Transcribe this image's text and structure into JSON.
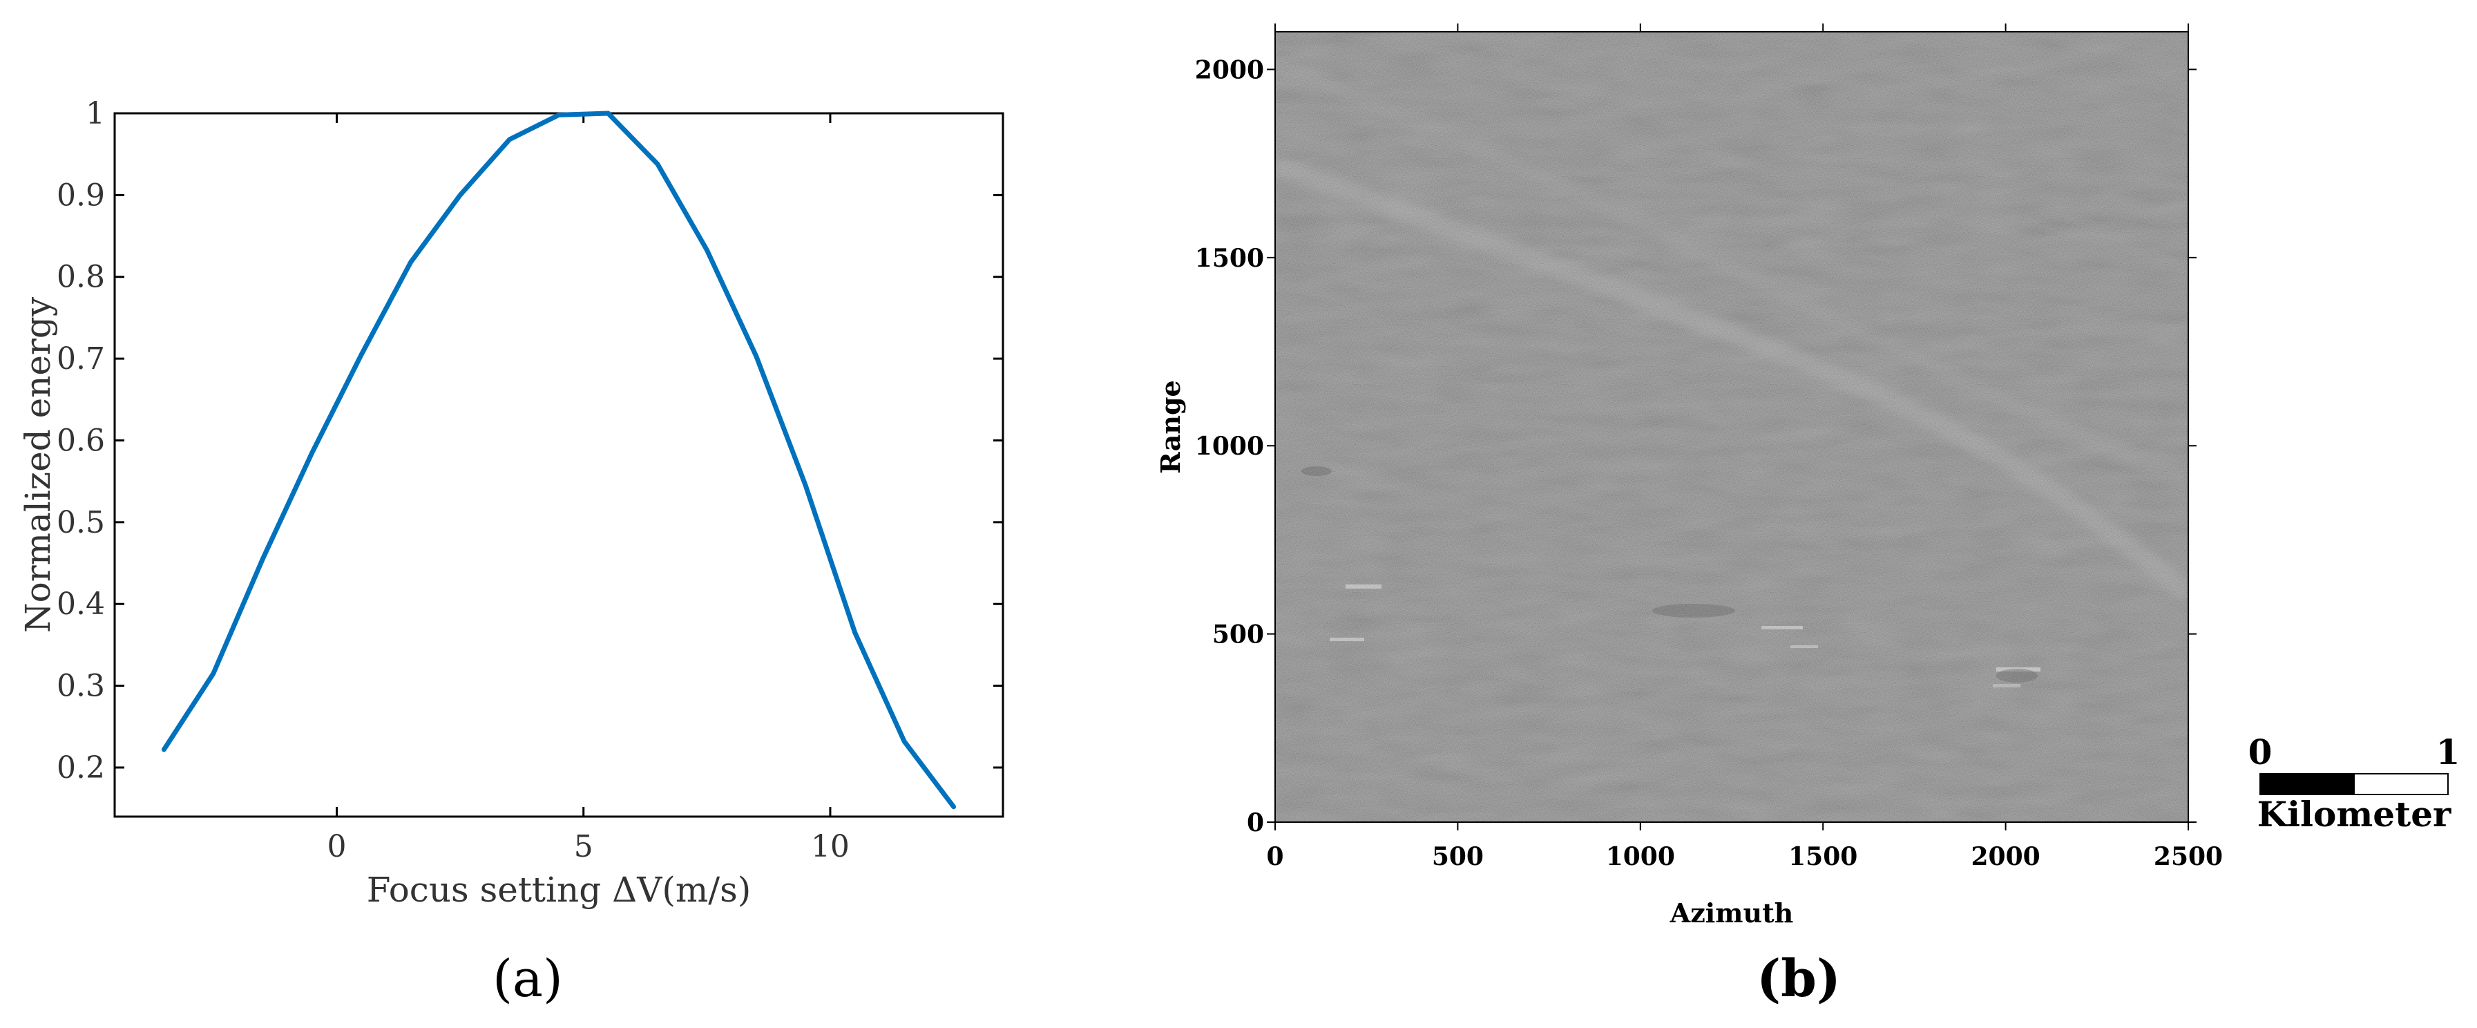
{
  "chart_data": [
    {
      "type": "line",
      "xlabel": "Focus setting ΔV(m/s)",
      "ylabel": "Normalized energy",
      "xlim": [
        -4.5,
        13.5
      ],
      "ylim": [
        0.14,
        1.0
      ],
      "xticks": [
        0,
        5,
        10
      ],
      "yticks": [
        0.2,
        0.3,
        0.4,
        0.5,
        0.6,
        0.7,
        0.8,
        0.9,
        1
      ],
      "ytick_labels": [
        "0.2",
        "0.3",
        "0.4",
        "0.5",
        "0.6",
        "0.7",
        "0.8",
        "0.9",
        "1"
      ],
      "series": [
        {
          "x": [
            -3.5,
            -2.5,
            -1.5,
            -0.5,
            0.5,
            1.5,
            2.5,
            3.5,
            4.5,
            5.5,
            6.5,
            7.5,
            8.5,
            9.5,
            10.5,
            11.5,
            12.5
          ],
          "y": [
            0.222,
            0.315,
            0.455,
            0.585,
            0.705,
            0.818,
            0.9,
            0.968,
            0.998,
            1.0,
            0.938,
            0.833,
            0.703,
            0.545,
            0.365,
            0.232,
            0.152
          ],
          "color": "#0072BD"
        }
      ],
      "grid": false,
      "panel_label": "(a)"
    },
    {
      "type": "heatmap",
      "xlabel": "Azimuth",
      "ylabel": "Range",
      "xlim": [
        0,
        2500
      ],
      "ylim": [
        0,
        2100
      ],
      "xticks": [
        0,
        500,
        1000,
        1500,
        2000,
        2500
      ],
      "yticks": [
        0,
        500,
        1000,
        1500,
        2000
      ],
      "colormap": "gray",
      "scalebar": {
        "start_label": "0",
        "end_label": "1",
        "unit_label": "Kilometer"
      },
      "panel_label": "(b)"
    }
  ]
}
